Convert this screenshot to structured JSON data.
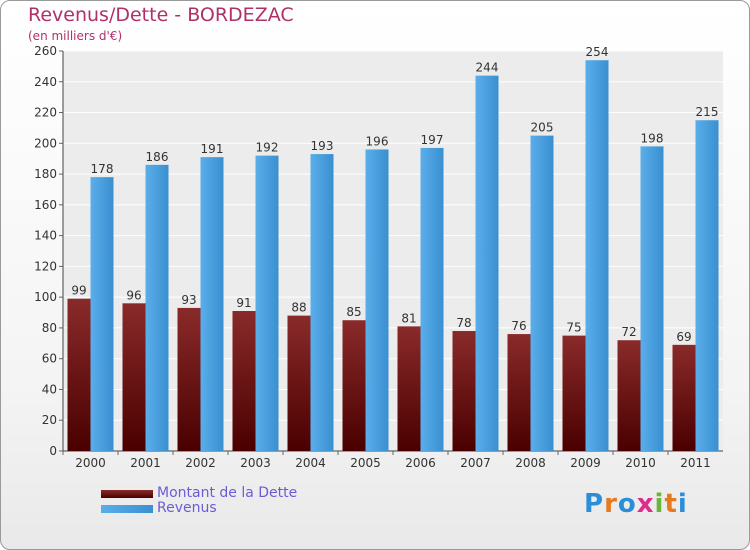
{
  "chart_data": {
    "type": "bar",
    "title": "Revenus/Dette - BORDEZAC",
    "subtitle": "(en milliers d'€)",
    "categories": [
      "2000",
      "2001",
      "2002",
      "2003",
      "2004",
      "2005",
      "2006",
      "2007",
      "2008",
      "2009",
      "2010",
      "2011"
    ],
    "series": [
      {
        "name": "Montant de la Dette",
        "color": "#7a1a1a",
        "values": [
          99,
          96,
          93,
          91,
          88,
          85,
          81,
          78,
          76,
          75,
          72,
          69
        ]
      },
      {
        "name": "Revenus",
        "color": "#4a9fe0",
        "values": [
          178,
          186,
          191,
          192,
          193,
          196,
          197,
          244,
          205,
          254,
          198,
          215
        ]
      }
    ],
    "ylim": [
      0,
      260
    ],
    "yticks": [
      0,
      20,
      40,
      60,
      80,
      100,
      120,
      140,
      160,
      180,
      200,
      220,
      240,
      260
    ],
    "grid": true,
    "legend_position": "bottom-left"
  },
  "branding": {
    "logo_letters": [
      "P",
      "r",
      "o",
      "x",
      "i",
      "t",
      "i"
    ],
    "logo_colors": [
      "#2a8fd8",
      "#e67a1e",
      "#2a8fd8",
      "#e02b8a",
      "#6bb63a",
      "#e67a1e",
      "#2a8fd8"
    ]
  }
}
